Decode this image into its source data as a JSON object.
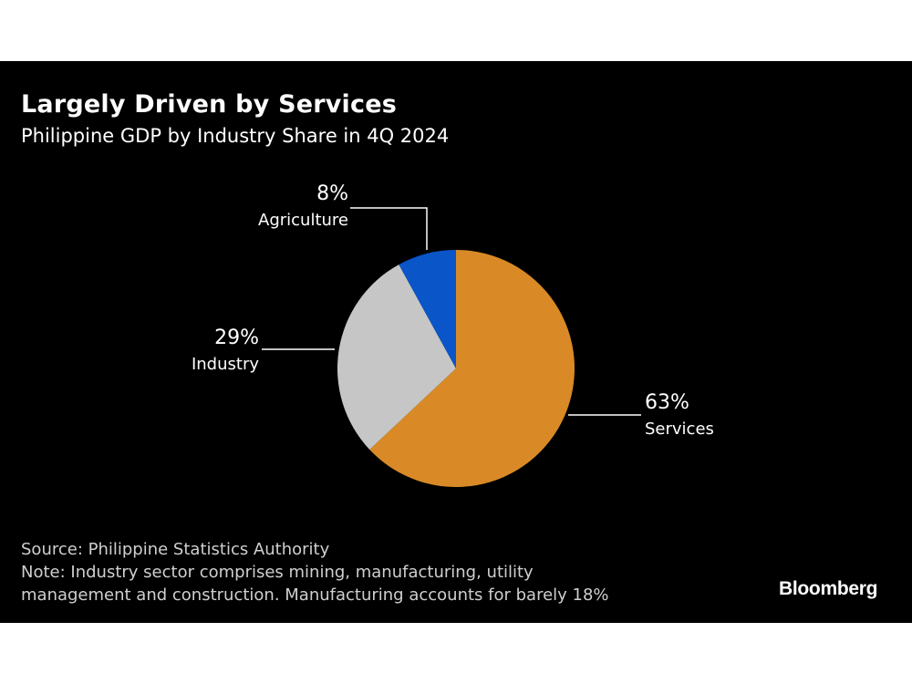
{
  "header": {
    "title": "Largely Driven by Services",
    "subtitle": "Philippine GDP by Industry Share in 4Q 2024"
  },
  "chart_data": {
    "type": "pie",
    "title": "Largely Driven by Services",
    "subtitle": "Philippine GDP by Industry Share in 4Q 2024",
    "unit": "%",
    "slices": [
      {
        "label": "Services",
        "value": 63,
        "display": "63%",
        "color": "#d98a26"
      },
      {
        "label": "Industry",
        "value": 29,
        "display": "29%",
        "color": "#c6c6c6"
      },
      {
        "label": "Agriculture",
        "value": 8,
        "display": "8%",
        "color": "#0a55c8"
      }
    ],
    "start": "12 o'clock",
    "direction": "clockwise",
    "legend": "none (direct labels)"
  },
  "footer": {
    "source": "Source: Philippine Statistics Authority",
    "note_line1": "Note: Industry sector comprises mining, manufacturing, utility",
    "note_line2": "management and construction. Manufacturing accounts for barely 18%"
  },
  "brand": {
    "logo_text": "Bloomberg"
  },
  "colors": {
    "background": "#000000",
    "text": "#ffffff",
    "footer_text": "#cfcfcf"
  }
}
